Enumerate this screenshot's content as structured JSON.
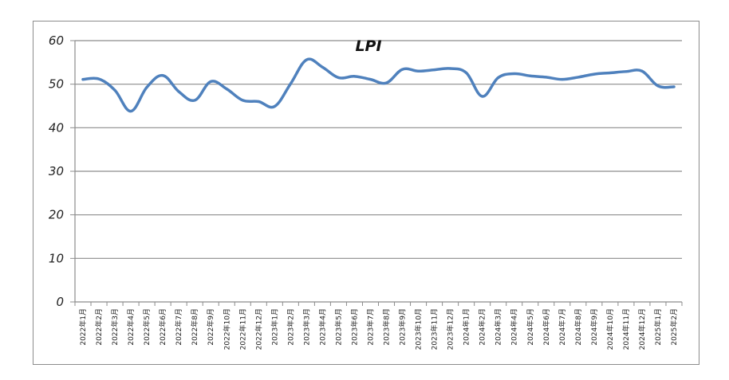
{
  "chart_data": {
    "type": "line",
    "title": "LPI",
    "xlabel": "",
    "ylabel": "",
    "ylim": [
      0,
      60
    ],
    "yticks": [
      "0",
      "10",
      "20",
      "30",
      "40",
      "50",
      "60"
    ],
    "grid": true,
    "line_color": "#4f81bd",
    "categories": [
      "2022年1月",
      "2022年2月",
      "2022年3月",
      "2022年4月",
      "2022年5月",
      "2022年6月",
      "2022年7月",
      "2022年8月",
      "2022年9月",
      "2022年10月",
      "2022年11月",
      "2022年12月",
      "2023年1月",
      "2023年2月",
      "2023年3月",
      "2023年4月",
      "2023年5月",
      "2023年6月",
      "2023年7月",
      "2023年8月",
      "2023年9月",
      "2023年10月",
      "2023年11月",
      "2023年12月",
      "2024年1月",
      "2024年2月",
      "2024年3月",
      "2024年4月",
      "2024年5月",
      "2024年6月",
      "2024年7月",
      "2024年8月",
      "2024年9月",
      "2024年10月",
      "2024年11月",
      "2024年12月",
      "2025年1月",
      "2025年2月"
    ],
    "series": [
      {
        "values": [
          51.1,
          51.2,
          48.6,
          43.8,
          49.3,
          52.0,
          48.3,
          46.3,
          50.6,
          48.9,
          46.3,
          46.0,
          44.9,
          50.1,
          55.6,
          53.9,
          51.5,
          51.8,
          51.1,
          50.3,
          53.4,
          53.0,
          53.3,
          53.6,
          52.6,
          47.2,
          51.5,
          52.4,
          51.9,
          51.6,
          51.1,
          51.6,
          52.3,
          52.6,
          52.9,
          53.0,
          49.6,
          49.4
        ]
      }
    ]
  }
}
